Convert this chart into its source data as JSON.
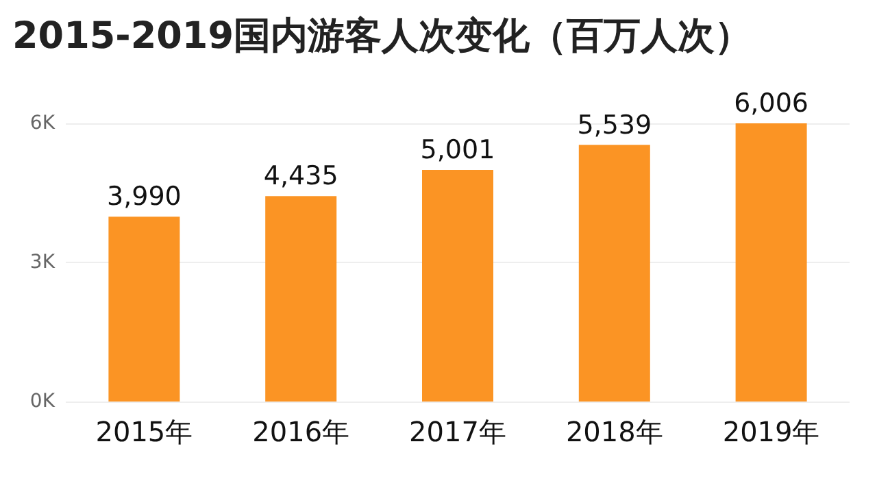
{
  "chart_data": {
    "type": "bar",
    "title": "2015-2019国内游客人次变化（百万人次）",
    "categories": [
      "2015年",
      "2016年",
      "2017年",
      "2018年",
      "2019年"
    ],
    "values": [
      3990,
      4435,
      5001,
      5539,
      6006
    ],
    "color": "#fb9424",
    "value_labels": [
      "3,990",
      "4,435",
      "5,001",
      "5,539",
      "6,006"
    ],
    "ylim": [
      0,
      6006
    ],
    "yticks": [
      {
        "value": 0,
        "label": "0K"
      },
      {
        "value": 3000,
        "label": "3K"
      },
      {
        "value": 6000,
        "label": "6K"
      }
    ],
    "grid": "y"
  }
}
